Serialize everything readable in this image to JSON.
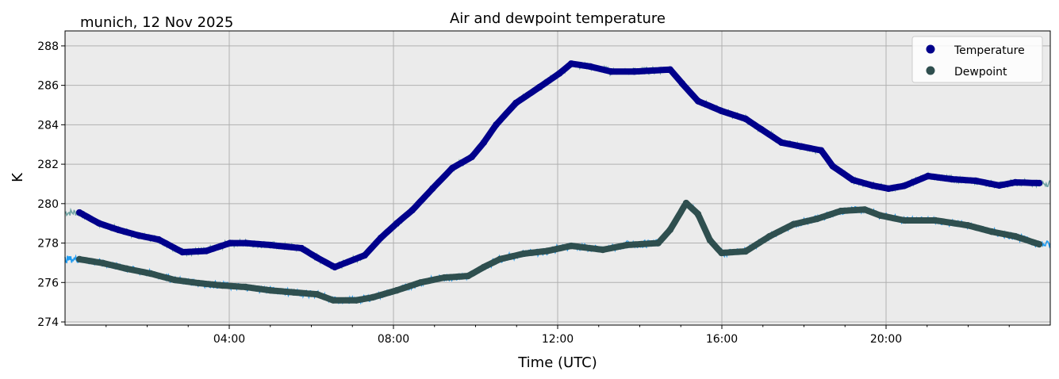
{
  "chart_data": {
    "type": "scatter",
    "title": "Air and dewpoint temperature",
    "left_title": "munich, 12 Nov 2025",
    "xlabel": "Time (UTC)",
    "ylabel": "K",
    "xlim": [
      0,
      24
    ],
    "ylim": [
      273.84,
      288.76
    ],
    "x_unit": "hours UTC",
    "xticks": [
      {
        "value": 4,
        "label": "04:00"
      },
      {
        "value": 8,
        "label": "08:00"
      },
      {
        "value": 12,
        "label": "12:00"
      },
      {
        "value": 16,
        "label": "16:00"
      },
      {
        "value": 20,
        "label": "20:00"
      }
    ],
    "yticks": [
      274,
      276,
      278,
      280,
      282,
      284,
      286,
      288
    ],
    "grid": true,
    "legend_position": "top-right",
    "series": [
      {
        "name": "Temperature",
        "color": "#00008b",
        "raw_color": "#6fa3a3",
        "x": [
          0.35,
          0.83,
          1.3,
          1.8,
          2.28,
          2.86,
          3.44,
          4.02,
          4.4,
          5.0,
          5.76,
          6.14,
          6.57,
          7.3,
          7.69,
          8.08,
          8.46,
          8.95,
          9.43,
          9.91,
          10.2,
          10.5,
          10.98,
          11.55,
          12.04,
          12.33,
          12.8,
          13.3,
          13.87,
          14.74,
          15.03,
          15.42,
          15.99,
          16.58,
          16.96,
          17.45,
          17.93,
          18.42,
          18.7,
          19.19,
          19.67,
          20.06,
          20.44,
          21.02,
          21.6,
          22.18,
          22.76,
          23.15,
          23.73
        ],
        "y": [
          279.55,
          279.0,
          278.67,
          278.38,
          278.18,
          277.54,
          277.6,
          278.0,
          278.0,
          277.9,
          277.74,
          277.26,
          276.78,
          277.38,
          278.26,
          279.0,
          279.67,
          280.76,
          281.8,
          282.37,
          283.1,
          284.0,
          285.1,
          285.9,
          286.6,
          287.1,
          286.95,
          286.7,
          286.7,
          286.8,
          286.1,
          285.2,
          284.7,
          284.3,
          283.77,
          283.1,
          282.9,
          282.7,
          281.9,
          281.2,
          280.92,
          280.76,
          280.9,
          281.4,
          281.24,
          281.16,
          280.92,
          281.08,
          281.04
        ]
      },
      {
        "name": "Dewpoint",
        "color": "#2f4f4f",
        "raw_color": "#1e9bf0",
        "x": [
          0.35,
          0.93,
          1.5,
          2.09,
          2.67,
          3.25,
          3.83,
          4.4,
          5.0,
          5.57,
          6.14,
          6.53,
          7.1,
          7.5,
          8.08,
          8.66,
          9.24,
          9.82,
          10.2,
          10.59,
          11.17,
          11.75,
          12.33,
          13.1,
          13.68,
          14.45,
          14.74,
          15.13,
          15.42,
          15.71,
          15.99,
          16.58,
          17.16,
          17.74,
          18.32,
          18.9,
          19.48,
          19.86,
          20.44,
          21.2,
          21.99,
          22.57,
          23.15,
          23.73
        ],
        "y": [
          277.18,
          276.98,
          276.7,
          276.45,
          276.13,
          275.97,
          275.85,
          275.77,
          275.6,
          275.5,
          275.4,
          275.1,
          275.1,
          275.25,
          275.6,
          276.0,
          276.25,
          276.33,
          276.78,
          277.18,
          277.46,
          277.6,
          277.86,
          277.66,
          277.9,
          278.0,
          278.67,
          280.03,
          279.47,
          278.14,
          277.5,
          277.58,
          278.34,
          278.95,
          279.23,
          279.63,
          279.7,
          279.4,
          279.15,
          279.15,
          278.9,
          278.58,
          278.34,
          277.94
        ]
      }
    ]
  }
}
